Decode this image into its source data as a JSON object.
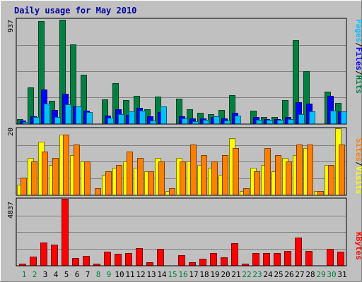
{
  "chart_data": [
    {
      "type": "bar",
      "title": "Daily usage for May 2010",
      "panel": "hits-files-pages",
      "y_max_label": "937",
      "ylim": [
        0,
        937
      ],
      "categories": [
        "1",
        "2",
        "3",
        "4",
        "5",
        "6",
        "7",
        "8",
        "9",
        "10",
        "11",
        "12",
        "13",
        "14",
        "15",
        "16",
        "17",
        "18",
        "19",
        "20",
        "21",
        "22",
        "23",
        "24",
        "25",
        "26",
        "27",
        "28",
        "29",
        "30",
        "31"
      ],
      "legend": [
        "Pages",
        "/",
        "Files",
        "/",
        "Hits"
      ],
      "series": [
        {
          "name": "Hits",
          "color": "#008040",
          "values": [
            40,
            320,
            920,
            200,
            930,
            710,
            440,
            0,
            215,
            360,
            210,
            245,
            125,
            240,
            0,
            220,
            125,
            95,
            85,
            120,
            255,
            0,
            115,
            60,
            55,
            210,
            745,
            470,
            0,
            285,
            185
          ]
        },
        {
          "name": "Files",
          "color": "#0000ff",
          "values": [
            25,
            65,
            305,
            120,
            265,
            155,
            115,
            0,
            70,
            125,
            75,
            140,
            65,
            100,
            0,
            65,
            45,
            45,
            60,
            45,
            95,
            0,
            55,
            40,
            40,
            55,
            190,
            175,
            0,
            245,
            105
          ]
        },
        {
          "name": "Pages",
          "color": "#00c0ff",
          "values": [
            15,
            55,
            180,
            55,
            170,
            150,
            100,
            0,
            50,
            85,
            110,
            115,
            25,
            150,
            0,
            45,
            20,
            30,
            65,
            25,
            70,
            0,
            30,
            30,
            30,
            40,
            85,
            105,
            0,
            115,
            110
          ]
        }
      ]
    },
    {
      "type": "bar",
      "panel": "sites-visits",
      "y_max_label": "20",
      "ylim": [
        0,
        20
      ],
      "categories": [
        "1",
        "2",
        "3",
        "4",
        "5",
        "6",
        "7",
        "8",
        "9",
        "10",
        "11",
        "12",
        "13",
        "14",
        "15",
        "16",
        "17",
        "18",
        "19",
        "20",
        "21",
        "22",
        "23",
        "24",
        "25",
        "26",
        "27",
        "28",
        "29",
        "30",
        "31"
      ],
      "legend": [
        "Sites",
        "/",
        "Visits"
      ],
      "series": [
        {
          "name": "Visits",
          "color": "#ffff00",
          "values": [
            3,
            11,
            16,
            9,
            18,
            12,
            10,
            0,
            6,
            8,
            10,
            8,
            7,
            11,
            1,
            11,
            10,
            9,
            8,
            6,
            17,
            1,
            8,
            9,
            7,
            11,
            12,
            14,
            1,
            9,
            20
          ]
        },
        {
          "name": "Sites",
          "color": "#ff8000",
          "values": [
            5,
            10,
            13,
            11,
            18,
            15,
            10,
            2,
            7,
            9,
            13,
            11,
            7,
            10,
            2,
            10,
            15,
            12,
            10,
            12,
            14,
            2,
            7,
            14,
            12,
            10,
            15,
            15,
            1,
            9,
            15
          ]
        }
      ]
    },
    {
      "type": "bar",
      "panel": "kbytes",
      "y_max_label": "4837",
      "ylim": [
        0,
        4837
      ],
      "categories": [
        "1",
        "2",
        "3",
        "4",
        "5",
        "6",
        "7",
        "8",
        "9",
        "10",
        "11",
        "12",
        "13",
        "14",
        "15",
        "16",
        "17",
        "18",
        "19",
        "20",
        "21",
        "22",
        "23",
        "24",
        "25",
        "26",
        "27",
        "28",
        "29",
        "30",
        "31"
      ],
      "legend": [
        "KBytes"
      ],
      "series": [
        {
          "name": "KBytes",
          "color": "#ff0000",
          "values": [
            80,
            620,
            1650,
            1480,
            4837,
            490,
            690,
            80,
            960,
            810,
            880,
            1220,
            230,
            1200,
            0,
            700,
            190,
            470,
            890,
            570,
            1580,
            80,
            850,
            850,
            900,
            1040,
            2000,
            1050,
            0,
            1200,
            970
          ]
        }
      ]
    }
  ],
  "x_labels": {
    "weekday_color": "#000000",
    "weekend_color": "#008040",
    "weekend_days": [
      "1",
      "2",
      "8",
      "9",
      "15",
      "16",
      "22",
      "23",
      "29",
      "30"
    ]
  }
}
